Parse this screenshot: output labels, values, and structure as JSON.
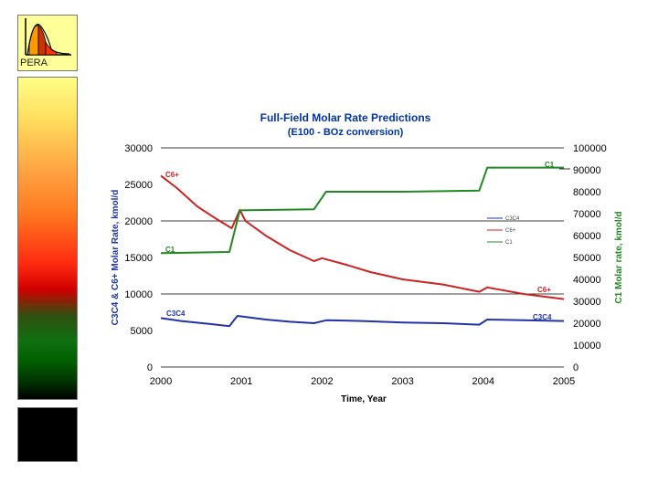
{
  "logo": {
    "text": "PERA",
    "icon": "distribution-curve-icon"
  },
  "colors": {
    "c3c4": "#2233aa",
    "c6": "#cc2222",
    "c1": "#228822",
    "title": "#0033aa"
  },
  "chart_data": {
    "type": "line",
    "title": "Full-Field Molar Rate Predictions",
    "subtitle": "(E100 - BOz conversion)",
    "xlabel": "Time, Year",
    "ylabel_left": "C3C4 & C6+ Molar Rate, kmol/d",
    "ylabel_right": "C1 Molar rate, kmol/d",
    "xlim": [
      2000,
      2005
    ],
    "ylim_left": [
      0,
      30000
    ],
    "ylim_right": [
      0,
      100000
    ],
    "x_ticks": [
      "2000",
      "2001",
      "2002",
      "2003",
      "2004",
      "2005"
    ],
    "y_ticks_left": [
      "30000",
      "25000",
      "20000",
      "15000",
      "10000",
      "5000",
      "0"
    ],
    "y_ticks_right": [
      "100000",
      "90000",
      "80000",
      "70000",
      "60000",
      "50000",
      "40000",
      "30000",
      "20000",
      "10000",
      "0"
    ],
    "grid": "horizontal at 10000, 20000, 30000",
    "legend_position": "right-middle",
    "legend": [
      "C3C4",
      "C6+",
      "C1"
    ],
    "series": [
      {
        "name": "C3C4",
        "axis": "left",
        "color": "#2233aa",
        "label": "C3C4",
        "points": [
          [
            2000,
            6700
          ],
          [
            2000.25,
            6300
          ],
          [
            2000.6,
            5900
          ],
          [
            2000.85,
            5600
          ],
          [
            2000.95,
            7000
          ],
          [
            2001.3,
            6500
          ],
          [
            2001.6,
            6200
          ],
          [
            2001.9,
            6000
          ],
          [
            2002.05,
            6400
          ],
          [
            2002.5,
            6300
          ],
          [
            2003,
            6100
          ],
          [
            2003.5,
            6000
          ],
          [
            2003.95,
            5800
          ],
          [
            2004.05,
            6500
          ],
          [
            2004.5,
            6400
          ],
          [
            2005,
            6300
          ]
        ]
      },
      {
        "name": "C6+",
        "axis": "left",
        "color": "#cc2222",
        "label": "C6+",
        "points": [
          [
            2000,
            26200
          ],
          [
            2000.2,
            24500
          ],
          [
            2000.45,
            22000
          ],
          [
            2000.7,
            20200
          ],
          [
            2000.88,
            19000
          ],
          [
            2000.98,
            21500
          ],
          [
            2001.05,
            20000
          ],
          [
            2001.3,
            18000
          ],
          [
            2001.6,
            16000
          ],
          [
            2001.9,
            14500
          ],
          [
            2002,
            14900
          ],
          [
            2002.3,
            14000
          ],
          [
            2002.6,
            13000
          ],
          [
            2003,
            12000
          ],
          [
            2003.5,
            11300
          ],
          [
            2003.95,
            10300
          ],
          [
            2004.05,
            10900
          ],
          [
            2004.5,
            10000
          ],
          [
            2005,
            9300
          ]
        ]
      },
      {
        "name": "C1",
        "axis": "right",
        "color": "#228822",
        "label": "C1",
        "points": [
          [
            2000,
            52000
          ],
          [
            2000.85,
            52500
          ],
          [
            2000.98,
            71500
          ],
          [
            2001.9,
            72000
          ],
          [
            2002.05,
            80000
          ],
          [
            2003,
            80000
          ],
          [
            2003.95,
            80500
          ],
          [
            2004.05,
            91000
          ],
          [
            2005,
            91000
          ]
        ]
      }
    ]
  }
}
